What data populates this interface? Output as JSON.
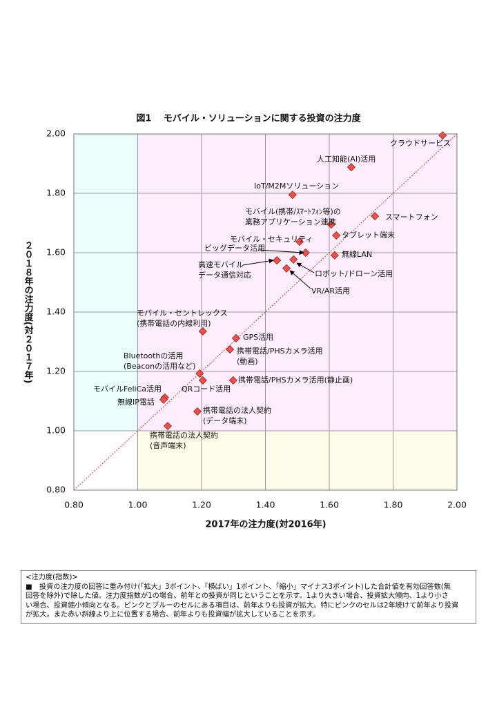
{
  "chart_data": {
    "type": "scatter",
    "title": "図1　 モバイル・ソリューションに関する投資の注力度",
    "xlabel": "2017年の注力度(対2016年)",
    "ylabel": "２０１８年の注力度(対２０１７年)",
    "xlim": [
      0.8,
      2.0
    ],
    "ylim": [
      0.8,
      2.0
    ],
    "xticks": [
      {
        "value": 0.8,
        "label": "0.80"
      },
      {
        "value": 1.0,
        "label": "1.00"
      },
      {
        "value": 1.2,
        "label": "1.20"
      },
      {
        "value": 1.4,
        "label": "1.40"
      },
      {
        "value": 1.6,
        "label": "1.60"
      },
      {
        "value": 1.8,
        "label": "1.80"
      },
      {
        "value": 2.0,
        "label": "2.00"
      }
    ],
    "yticks": [
      {
        "value": 0.8,
        "label": "0.80"
      },
      {
        "value": 1.0,
        "label": "1.00"
      },
      {
        "value": 1.2,
        "label": "1.20"
      },
      {
        "value": 1.4,
        "label": "1.40"
      },
      {
        "value": 1.6,
        "label": "1.60"
      },
      {
        "value": 1.8,
        "label": "1.80"
      },
      {
        "value": 2.0,
        "label": "2.00"
      }
    ],
    "grid": true,
    "color": "#e8524a",
    "regions": [
      {
        "xlim": [
          0.8,
          1.0
        ],
        "ylim": [
          1.0,
          2.0
        ],
        "color": "#ecffff"
      },
      {
        "xlim": [
          1.0,
          2.0
        ],
        "ylim": [
          1.0,
          2.0
        ],
        "color": "#fdeefd"
      },
      {
        "xlim": [
          1.0,
          2.0
        ],
        "ylim": [
          0.8,
          1.0
        ],
        "color": "#fefeea"
      }
    ],
    "diagonal": {
      "x": [
        0.8,
        2.0
      ],
      "y": [
        0.8,
        2.0
      ],
      "color": "#e03030"
    },
    "x": [
      1.955,
      1.669,
      1.485,
      1.743,
      1.606,
      1.622,
      1.507,
      1.526,
      1.617,
      1.436,
      1.488,
      1.466,
      1.204,
      1.308,
      1.289,
      1.194,
      1.204,
      1.299,
      1.085,
      1.081,
      1.187,
      1.094
    ],
    "y": [
      1.995,
      1.888,
      1.795,
      1.723,
      1.695,
      1.658,
      1.637,
      1.6,
      1.591,
      1.574,
      1.577,
      1.547,
      1.335,
      1.312,
      1.274,
      1.193,
      1.17,
      1.17,
      1.112,
      1.105,
      1.065,
      1.016
    ],
    "point_labels": [
      [
        "クラウドサービス"
      ],
      [
        "人工知能(AI)活用"
      ],
      [
        "IoT/M2Mソリューション"
      ],
      [
        "スマートフォン"
      ],
      [
        "モバイル(携帯/ｽﾏｰﾄﾌｫﾝ等)の",
        "業務アプリケーション連携"
      ],
      [
        "タブレット端末"
      ],
      [
        "モバイル・セキュリティ"
      ],
      [
        "ビッグデータ活用"
      ],
      [
        "無線LAN"
      ],
      [
        "高速モバイル",
        "データ通信対応"
      ],
      [
        "ロボット/ドローン活用"
      ],
      [
        "VR/AR活用"
      ],
      [
        "モバイル・セントレックス",
        "(携帯電話の内線利用)"
      ],
      [
        "GPS活用"
      ],
      [
        "携帯電話/PHSカメラ活用",
        "(動画)"
      ],
      [
        "Bluetoothの活用",
        "(Beaconの活用など)"
      ],
      [
        "QRコード活用"
      ],
      [
        "携帯電話/PHSカメラ活用(静止画)"
      ],
      [
        "モバイルFeliCa活用"
      ],
      [
        "無線IP電話"
      ],
      [
        "携帯電話の法人契約",
        "(データ端末)"
      ],
      [
        "携帯電話の法人契約",
        "(音声端末)"
      ]
    ]
  },
  "note": {
    "title": "<注力度(指数)>",
    "lines": [
      "■　投資の注力度の回答に重み付け(「拡大」3ポイント、「横ばい」1ポイント、「縮小」マイナス3ポイント)した合計値を有効回答数(無",
      "回答を除外)で除した値。注力度指数が1の場合、前年との投資が同じということを示す。1より大きい場合、投資拡大傾向、1より小さ",
      "い場合、投資縮小傾向となる。ピンクとブルーのセルにある項目は、前年よりも投資が拡大。特にピンクのセルは2年続けて前年より投資",
      "が拡大。また赤い斜線より上に位置する場合、前年よりも投資幅が拡大していることを示す。"
    ]
  }
}
